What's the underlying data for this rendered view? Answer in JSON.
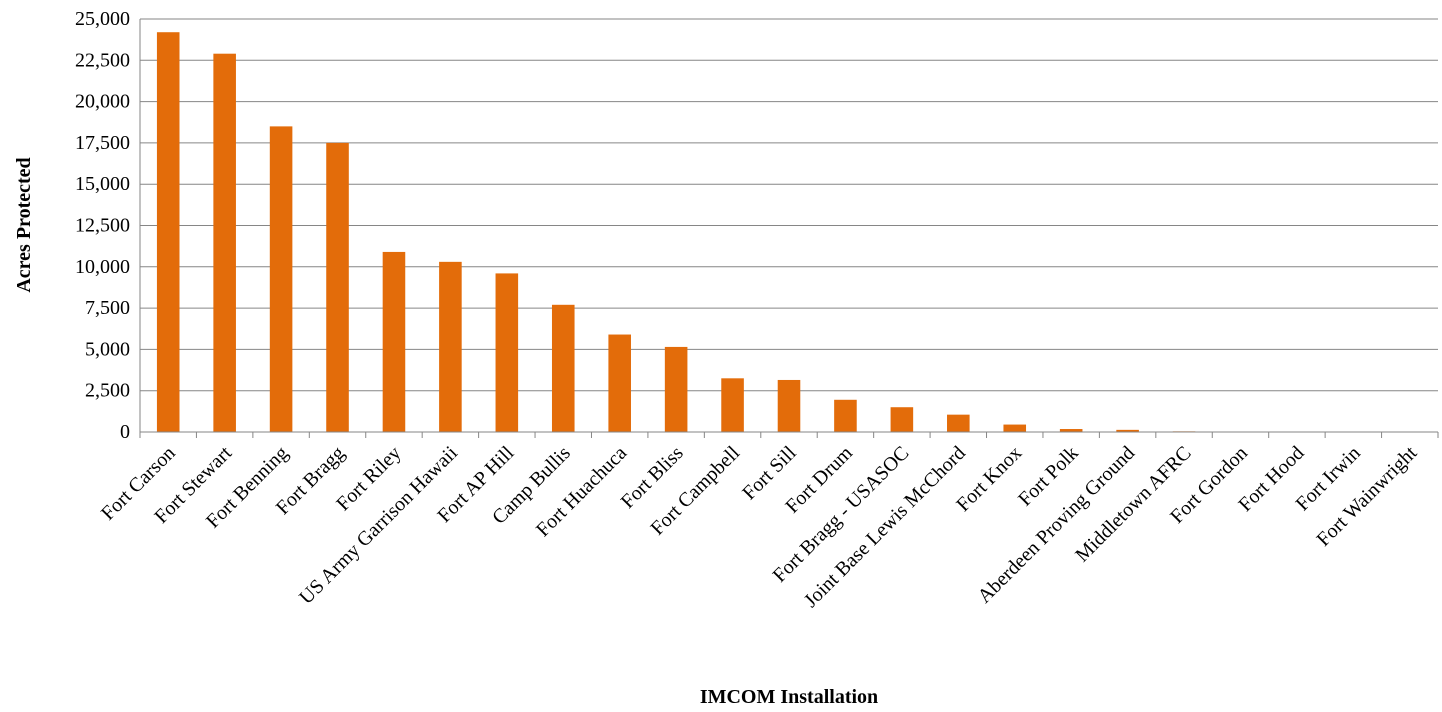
{
  "chart_data": {
    "type": "bar",
    "title": "",
    "xlabel": "IMCOM Installation",
    "ylabel": "Acres Protected",
    "ylim": [
      0,
      25000
    ],
    "yticks": [
      "0",
      "2,500",
      "5,000",
      "7,500",
      "10,000",
      "12,500",
      "15,000",
      "17,500",
      "20,000",
      "22,500",
      "25,000"
    ],
    "grid": true,
    "legend": "none",
    "color": "#E36C0A",
    "categories": [
      "Fort Carson",
      "Fort Stewart",
      "Fort Benning",
      "Fort Bragg",
      "Fort Riley",
      "US Army Garrison Hawaii",
      "Fort AP Hill",
      "Camp Bullis",
      "Fort Huachuca",
      "Fort Bliss",
      "Fort Campbell",
      "Fort Sill",
      "Fort Drum",
      "Fort Bragg - USASOC",
      "Joint Base Lewis McChord",
      "Fort Knox",
      "Fort Polk",
      "Aberdeen Proving Ground",
      "Middletown AFRC",
      "Fort Gordon",
      "Fort Hood",
      "Fort Irwin",
      "Fort Wainwright"
    ],
    "values": [
      24200,
      22900,
      18500,
      17500,
      10900,
      10300,
      9600,
      7700,
      5900,
      5150,
      3250,
      3150,
      1950,
      1500,
      1050,
      450,
      180,
      130,
      40,
      10,
      5,
      5,
      5
    ]
  }
}
